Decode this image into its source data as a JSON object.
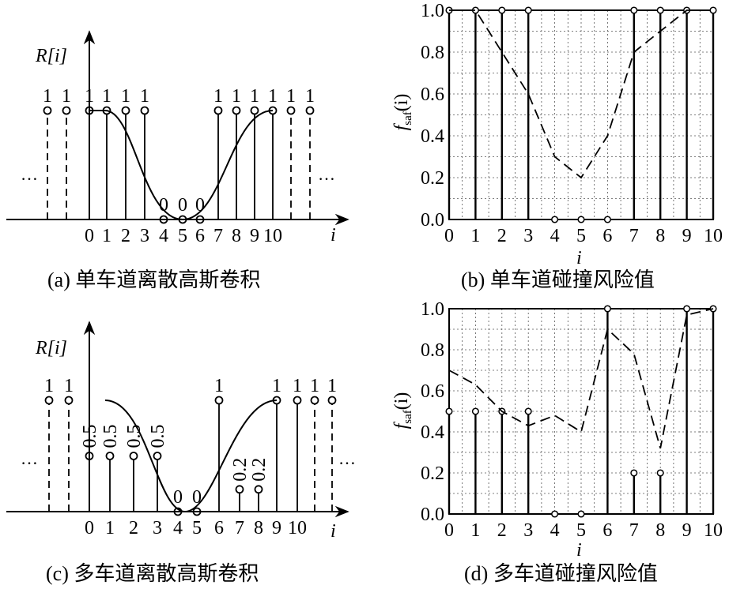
{
  "chart_data": [
    {
      "id": "a",
      "type": "stem",
      "caption": "(a) 单车道离散高斯卷积",
      "ylabel": "R[i]",
      "xlabel": "i",
      "x_ticks": [
        "0",
        "1",
        "2",
        "3",
        "4",
        "5",
        "6",
        "7",
        "8",
        "9",
        "10"
      ],
      "left_ellipsis": "…",
      "right_ellipsis": "…",
      "dashed_stems": [
        {
          "x": -2,
          "value": 1,
          "label": "1"
        },
        {
          "x": -1,
          "value": 1,
          "label": "1"
        },
        {
          "x": 11,
          "value": 1,
          "label": "1"
        },
        {
          "x": 12,
          "value": 1,
          "label": "1"
        }
      ],
      "solid_stems": [
        {
          "x": 0,
          "value": 1,
          "label": "1"
        },
        {
          "x": 1,
          "value": 1,
          "label": "1"
        },
        {
          "x": 2,
          "value": 1,
          "label": "1"
        },
        {
          "x": 3,
          "value": 1,
          "label": "1"
        },
        {
          "x": 4,
          "value": 0,
          "label": "0"
        },
        {
          "x": 5,
          "value": 0,
          "label": "0"
        },
        {
          "x": 6,
          "value": 0,
          "label": "0"
        },
        {
          "x": 7,
          "value": 1,
          "label": "1"
        },
        {
          "x": 8,
          "value": 1,
          "label": "1"
        },
        {
          "x": 9,
          "value": 1,
          "label": "1"
        },
        {
          "x": 10,
          "value": 1,
          "label": "1"
        }
      ]
    },
    {
      "id": "b",
      "type": "line",
      "caption": "(b) 单车道碰撞风险值",
      "ylabel_main": "f",
      "ylabel_sub": "saf",
      "ylabel_rest": "(i)",
      "xlabel": "i",
      "xlim": [
        0,
        10
      ],
      "ylim": [
        0,
        1
      ],
      "x_ticks": [
        "0",
        "1",
        "2",
        "3",
        "4",
        "5",
        "6",
        "7",
        "8",
        "9",
        "10"
      ],
      "y_ticks": [
        "0.0",
        "0.2",
        "0.4",
        "0.6",
        "0.8",
        "1.0"
      ],
      "grid": true,
      "stems": [
        {
          "x": 0,
          "y": 1
        },
        {
          "x": 1,
          "y": 1
        },
        {
          "x": 2,
          "y": 1
        },
        {
          "x": 3,
          "y": 1
        },
        {
          "x": 4,
          "y": 0
        },
        {
          "x": 5,
          "y": 0
        },
        {
          "x": 6,
          "y": 0
        },
        {
          "x": 7,
          "y": 1
        },
        {
          "x": 8,
          "y": 1
        },
        {
          "x": 9,
          "y": 1
        },
        {
          "x": 10,
          "y": 1
        }
      ],
      "dashed_line": {
        "x": [
          0,
          1,
          2,
          3,
          4,
          5,
          6,
          7,
          8,
          9,
          10
        ],
        "y": [
          1.0,
          1.0,
          0.8,
          0.6,
          0.3,
          0.2,
          0.4,
          0.8,
          0.9,
          1.0,
          1.0
        ]
      }
    },
    {
      "id": "c",
      "type": "stem",
      "caption": "(c) 多车道离散高斯卷积",
      "ylabel": "R[i]",
      "xlabel": "i",
      "x_ticks": [
        "0",
        "1",
        "2",
        "3",
        "4",
        "5",
        "6",
        "7",
        "8",
        "9",
        "10"
      ],
      "left_ellipsis": "…",
      "right_ellipsis": "…",
      "dashed_stems": [
        {
          "x": -2,
          "value": 1,
          "label": "1"
        },
        {
          "x": -1,
          "value": 1,
          "label": "1"
        },
        {
          "x": 11,
          "value": 1,
          "label": "1"
        },
        {
          "x": 12,
          "value": 1,
          "label": "1"
        }
      ],
      "solid_stems": [
        {
          "x": 0,
          "value": 0.5,
          "label": "0.5"
        },
        {
          "x": 1,
          "value": 0.5,
          "label": "0.5"
        },
        {
          "x": 2,
          "value": 0.5,
          "label": "0.5"
        },
        {
          "x": 3,
          "value": 0.5,
          "label": "0.5"
        },
        {
          "x": 4,
          "value": 0,
          "label": "0"
        },
        {
          "x": 5,
          "value": 0,
          "label": "0"
        },
        {
          "x": 6,
          "value": 1,
          "label": "1"
        },
        {
          "x": 7,
          "value": 0.2,
          "label": "0.2"
        },
        {
          "x": 8,
          "value": 0.2,
          "label": "0.2"
        },
        {
          "x": 9,
          "value": 1,
          "label": "1"
        },
        {
          "x": 10,
          "value": 1,
          "label": "1"
        }
      ]
    },
    {
      "id": "d",
      "type": "line",
      "caption": "(d) 多车道碰撞风险值",
      "ylabel_main": "f",
      "ylabel_sub": "saf",
      "ylabel_rest": "(i)",
      "xlabel": "i",
      "xlim": [
        0,
        10
      ],
      "ylim": [
        0,
        1
      ],
      "x_ticks": [
        "0",
        "1",
        "2",
        "3",
        "4",
        "5",
        "6",
        "7",
        "8",
        "9",
        "10"
      ],
      "y_ticks": [
        "0.0",
        "0.2",
        "0.4",
        "0.6",
        "0.8",
        "1.0"
      ],
      "grid": true,
      "stems": [
        {
          "x": 0,
          "y": 0.5
        },
        {
          "x": 1,
          "y": 0.5
        },
        {
          "x": 2,
          "y": 0.5
        },
        {
          "x": 3,
          "y": 0.5
        },
        {
          "x": 4,
          "y": 0
        },
        {
          "x": 5,
          "y": 0
        },
        {
          "x": 6,
          "y": 1
        },
        {
          "x": 7,
          "y": 0.2
        },
        {
          "x": 8,
          "y": 0.2
        },
        {
          "x": 9,
          "y": 1
        },
        {
          "x": 10,
          "y": 1
        }
      ],
      "dashed_line": {
        "x": [
          0,
          1,
          2,
          3,
          4,
          5,
          6,
          7,
          8,
          9,
          10
        ],
        "y": [
          0.7,
          0.63,
          0.5,
          0.43,
          0.48,
          0.4,
          0.9,
          0.78,
          0.32,
          0.97,
          1.0
        ]
      }
    }
  ]
}
